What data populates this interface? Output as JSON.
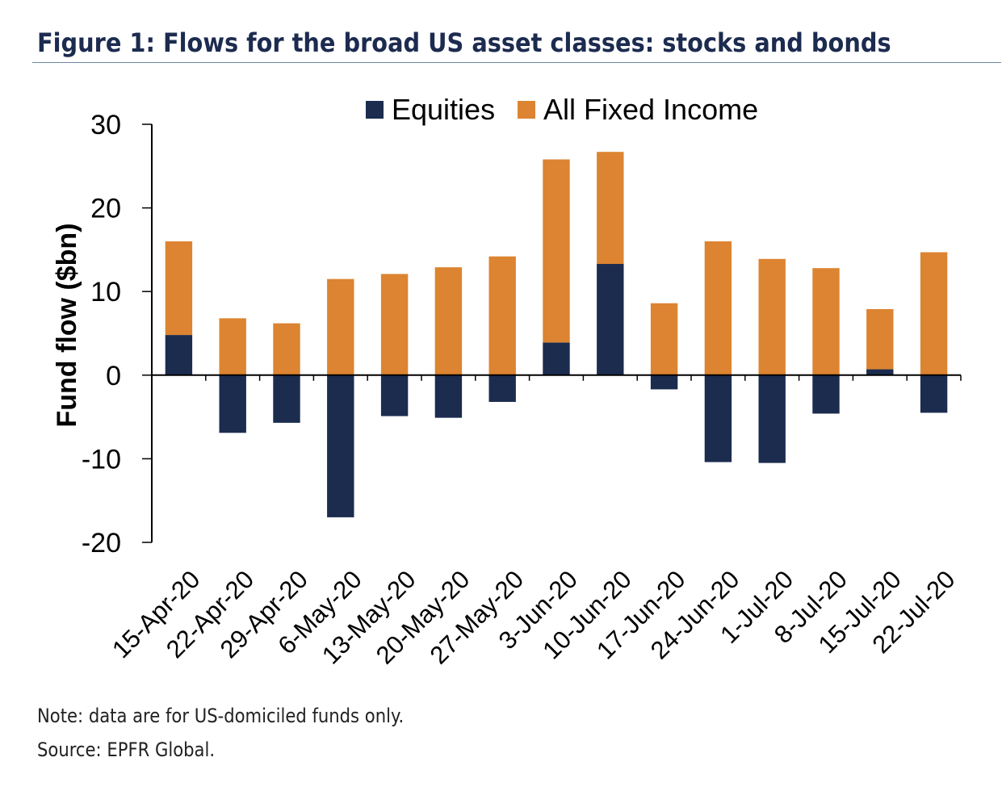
{
  "figure": {
    "title": "Figure 1: Flows for the broad US asset classes: stocks and bonds",
    "note": "Note: data are for US-domiciled funds only.",
    "source": "Source: EPFR Global."
  },
  "colors": {
    "equities": "#1b2c4f",
    "fixed_income": "#dc8431",
    "title": "#1c2b4f",
    "rule": "#6f86a2",
    "axis": "#000000"
  },
  "chart_data": {
    "type": "bar",
    "stacked": true,
    "title": "",
    "xlabel": "",
    "ylabel": "Fund flow ($bn)",
    "ylim": [
      -20,
      30
    ],
    "yticks": [
      30,
      20,
      10,
      0,
      -10,
      -20
    ],
    "legend_position": "top-center",
    "categories": [
      "15-Apr-20",
      "22-Apr-20",
      "29-Apr-20",
      "6-May-20",
      "13-May-20",
      "20-May-20",
      "27-May-20",
      "3-Jun-20",
      "10-Jun-20",
      "17-Jun-20",
      "24-Jun-20",
      "1-Jul-20",
      "8-Jul-20",
      "15-Jul-20",
      "22-Jul-20"
    ],
    "series": [
      {
        "name": "Equities",
        "color": "#1b2c4f",
        "values": [
          4.8,
          -6.9,
          -5.7,
          -17.0,
          -4.9,
          -5.1,
          -3.2,
          3.9,
          13.3,
          -1.7,
          -10.4,
          -10.5,
          -4.6,
          0.7,
          -4.5
        ]
      },
      {
        "name": "All Fixed Income",
        "color": "#dc8431",
        "values": [
          11.2,
          6.8,
          6.2,
          11.5,
          12.1,
          12.9,
          14.2,
          21.9,
          13.4,
          8.6,
          16.0,
          13.9,
          12.8,
          7.2,
          14.7
        ]
      }
    ]
  }
}
